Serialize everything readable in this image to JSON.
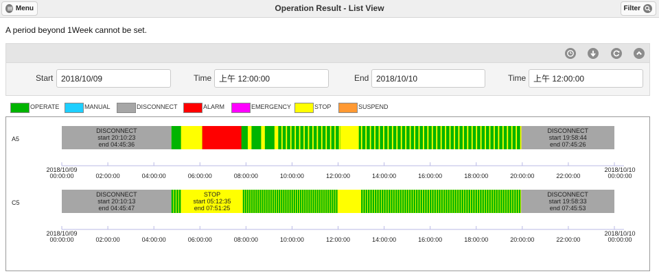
{
  "header": {
    "menu_label": "Menu",
    "title": "Operation Result - List View",
    "filter_label": "Filter"
  },
  "notice": "A period beyond 1Week cannot be set.",
  "toolbar": {
    "icons": [
      "clock-icon",
      "download-icon",
      "refresh-icon",
      "collapse-icon"
    ]
  },
  "filters": {
    "start_label": "Start",
    "start_value": "2018/10/09",
    "start_time_label": "Time",
    "start_time_value": "上午 12:00:00",
    "end_label": "End",
    "end_value": "2018/10/10",
    "end_time_label": "Time",
    "end_time_value": "上午 12:00:00"
  },
  "legend": [
    {
      "label": "OPERATE",
      "color": "#00b400"
    },
    {
      "label": "MANUAL",
      "color": "#1ecfff"
    },
    {
      "label": "DISCONNECT",
      "color": "#a6a6a6"
    },
    {
      "label": "ALARM",
      "color": "#ff0000"
    },
    {
      "label": "EMERGENCY",
      "color": "#ff00ff"
    },
    {
      "label": "STOP",
      "color": "#ffff00"
    },
    {
      "label": "SUSPEND",
      "color": "#ff9933"
    }
  ],
  "chart_data": {
    "type": "timeline",
    "x_range_hours": [
      0,
      24
    ],
    "start_label": [
      "2018/10/09",
      "00:00:00"
    ],
    "end_label": [
      "2018/10/10",
      "00:00:00"
    ],
    "tick_labels": [
      "02:00:00",
      "04:00:00",
      "06:00:00",
      "08:00:00",
      "10:00:00",
      "12:00:00",
      "14:00:00",
      "16:00:00",
      "18:00:00",
      "20:00:00",
      "22:00:00"
    ],
    "rows": [
      {
        "name": "A5",
        "stripes": [
          {
            "from": 4.76,
            "to": 9.4,
            "state": "operate",
            "n": 8
          },
          {
            "from": 9.4,
            "to": 19.96,
            "state": "operate",
            "n": 55
          }
        ],
        "segments": [
          {
            "from": 0.0,
            "to": 4.76,
            "state": "DISCONNECT",
            "lines": [
              "DISCONNECT",
              "start 20:10:23",
              "end  04:45:36"
            ]
          },
          {
            "from": 5.3,
            "to": 6.1,
            "state": "STOP",
            "lines": []
          },
          {
            "from": 6.1,
            "to": 7.8,
            "state": "ALARM",
            "lines": []
          },
          {
            "from": 12.1,
            "to": 12.9,
            "state": "STOP",
            "lines": []
          },
          {
            "from": 19.96,
            "to": 24.0,
            "state": "DISCONNECT",
            "lines": [
              "DISCONNECT",
              "start 19:58:44",
              "end  07:45:26"
            ]
          }
        ]
      },
      {
        "name": "C5",
        "stripes": [
          {
            "from": 4.76,
            "to": 5.2,
            "state": "operate",
            "n": 4
          },
          {
            "from": 7.86,
            "to": 12.0,
            "state": "operate",
            "n": 45
          },
          {
            "from": 13.0,
            "to": 19.95,
            "state": "operate",
            "n": 70
          }
        ],
        "segments": [
          {
            "from": 0.0,
            "to": 4.76,
            "state": "DISCONNECT",
            "lines": [
              "DISCONNECT",
              "start 20:10:13",
              "end  04:45:47"
            ]
          },
          {
            "from": 5.2,
            "to": 7.86,
            "state": "STOP",
            "lines": [
              "STOP",
              "start 05:12:35",
              "end  07:51:25"
            ]
          },
          {
            "from": 12.0,
            "to": 13.0,
            "state": "STOP",
            "lines": []
          },
          {
            "from": 19.95,
            "to": 24.0,
            "state": "DISCONNECT",
            "lines": [
              "DISCONNECT",
              "start 19:58:33",
              "end  07:45:53"
            ]
          }
        ]
      }
    ]
  }
}
